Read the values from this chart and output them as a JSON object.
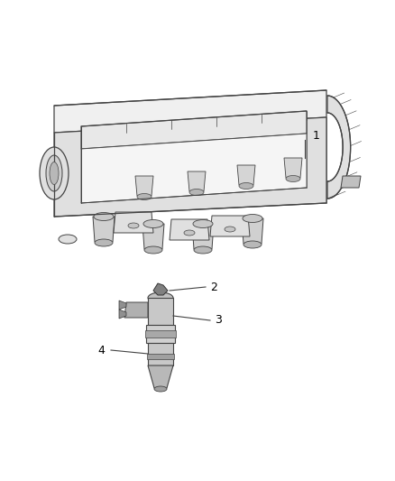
{
  "background_color": "#ffffff",
  "line_color": "#444444",
  "fill_light": "#f0f0f0",
  "fill_mid": "#e0e0e0",
  "fill_dark": "#c8c8c8",
  "fig_width": 4.38,
  "fig_height": 5.33,
  "dpi": 100
}
